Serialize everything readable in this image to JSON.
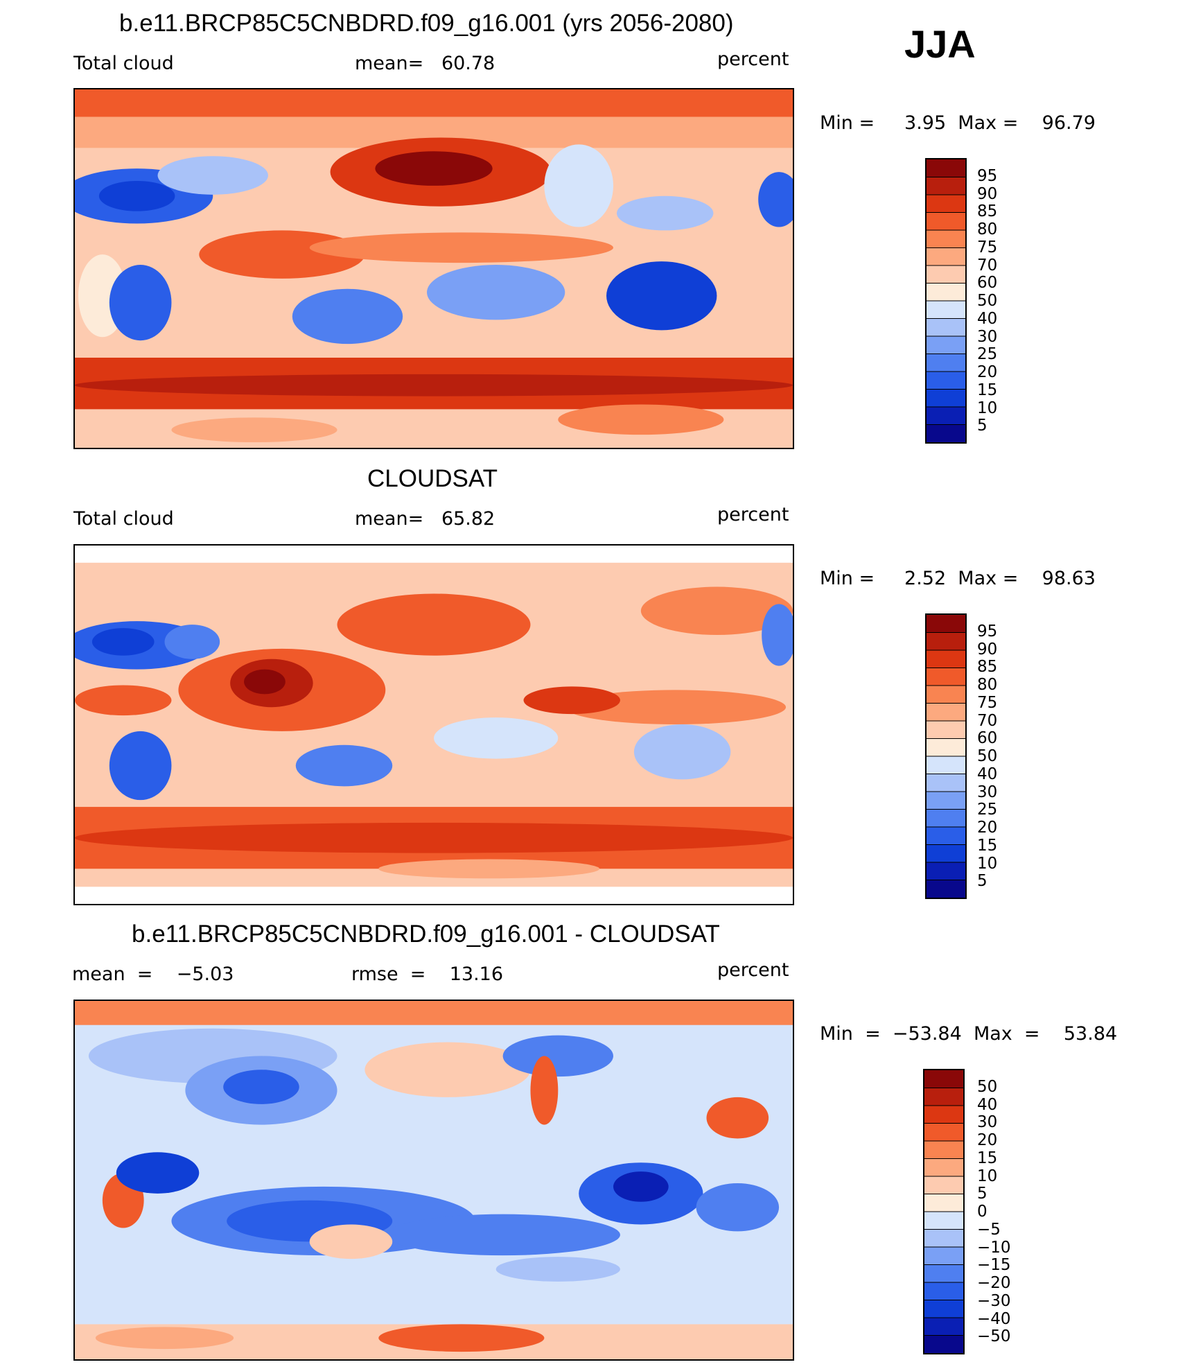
{
  "season": "JJA",
  "palette_diverging": [
    "#08088c",
    "#0a1fb4",
    "#0f3fd6",
    "#2a5ee8",
    "#4f7ff0",
    "#7aa0f5",
    "#a9c2f8",
    "#d5e4fb",
    "#fdebd9",
    "#fdcbb0",
    "#fca97f",
    "#f98451",
    "#f05a2a",
    "#dc3712",
    "#b81f0d",
    "#8a0808"
  ],
  "colorbar_abs": {
    "levels": [
      "95",
      "90",
      "85",
      "80",
      "75",
      "70",
      "60",
      "50",
      "40",
      "30",
      "25",
      "20",
      "15",
      "10",
      "5"
    ]
  },
  "colorbar_diff": {
    "levels": [
      "50",
      "40",
      "30",
      "20",
      "15",
      "10",
      "5",
      "0",
      "−5",
      "−10",
      "−15",
      "−20",
      "−30",
      "−40",
      "−50"
    ]
  },
  "panels": [
    {
      "title": "b.e11.BRCP85C5CNBDRD.f09_g16.001 (yrs 2056-2080)",
      "left_label": "Total cloud",
      "center_label": "mean=   60.78",
      "right_label": "percent",
      "minmax": "Min =     3.95  Max =    96.79"
    },
    {
      "title": "CLOUDSAT",
      "left_label": "Total cloud",
      "center_label": "mean=   65.82",
      "right_label": "percent",
      "minmax": "Min =     2.52  Max =    98.63"
    },
    {
      "title": "b.e11.BRCP85C5CNBDRD.f09_g16.001 - CLOUDSAT",
      "left_label": "mean  =    −5.03",
      "center_label": "rmse  =    13.16",
      "right_label": "percent",
      "minmax": "Min  =  −53.84  Max  =    53.84"
    }
  ]
}
